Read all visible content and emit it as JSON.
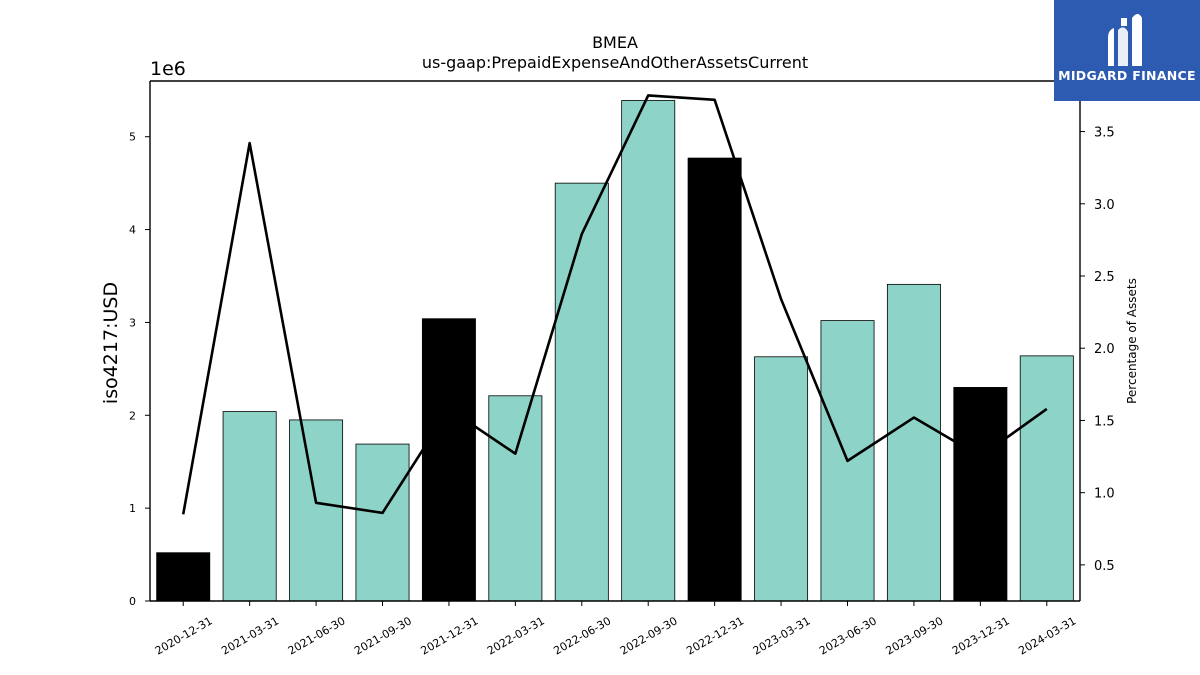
{
  "logo": {
    "brand": "MIDGARD FINANCE",
    "icon": "midgard-logo-icon",
    "background": "#2d5bb1"
  },
  "chart_data": {
    "type": "bar",
    "title": "BMEA",
    "subtitle": "us-gaap:PrepaidExpenseAndOtherAssetsCurrent",
    "ylabel": "iso4217:USD",
    "y_multiplier_label": "1e6",
    "y2label": "Percentage of Assets",
    "categories": [
      "2020-12-31",
      "2021-03-31",
      "2021-06-30",
      "2021-09-30",
      "2021-12-31",
      "2022-03-31",
      "2022-06-30",
      "2022-09-30",
      "2022-12-31",
      "2023-03-31",
      "2023-06-30",
      "2023-09-30",
      "2023-12-31",
      "2024-03-31"
    ],
    "series": [
      {
        "type": "bar",
        "values": [
          520000,
          2040000,
          1950000,
          1690000,
          3040000,
          2210000,
          4500000,
          5390000,
          4770000,
          2630000,
          3020000,
          3410000,
          2300000,
          2640000
        ]
      },
      {
        "type": "line",
        "axis": "right",
        "values": [
          0.85,
          3.42,
          0.93,
          0.86,
          1.58,
          1.27,
          2.79,
          3.75,
          3.72,
          2.34,
          1.22,
          1.52,
          1.25,
          1.58
        ]
      }
    ],
    "bar_colors": [
      "#000000",
      "#8dd3c7",
      "#8dd3c7",
      "#8dd3c7",
      "#000000",
      "#8dd3c7",
      "#8dd3c7",
      "#8dd3c7",
      "#000000",
      "#8dd3c7",
      "#8dd3c7",
      "#8dd3c7",
      "#000000",
      "#8dd3c7"
    ],
    "line_color": "#000000",
    "ylim": [
      0,
      5600000
    ],
    "y_ticks": [
      "0",
      "1",
      "2",
      "3",
      "4",
      "5"
    ],
    "y2lim": [
      0.25,
      3.85
    ],
    "y2_ticks": [
      "0.5",
      "1.0",
      "1.5",
      "2.0",
      "2.5",
      "3.0",
      "3.5"
    ],
    "grid": false
  }
}
